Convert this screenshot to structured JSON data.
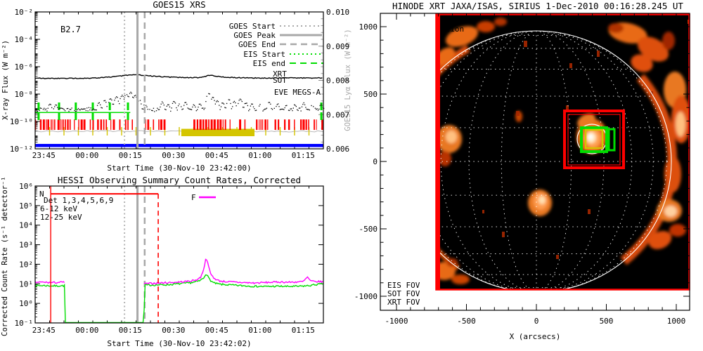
{
  "figure": {
    "background": "#ffffff"
  },
  "colors": {
    "red": "#ff0000",
    "green": "#00dd00",
    "yellow": "#d4c500",
    "blue": "#0000ff",
    "magenta": "#ff00ff",
    "gray": "#a8a8a8",
    "black": "#000000",
    "image_orange": "#e86a14",
    "image_core": "#ffe8c0"
  },
  "panels": {
    "goes": {
      "title": "GOES15 XRS",
      "flare_class": "B2.7",
      "ylabel": "X-ray Flux (W m⁻²)",
      "right_ylabel": "GOES15 Lyα Flux (W m⁻²)",
      "xlabel": "Start Time (30-Nov-10 23:42:00)",
      "legend_lines": [
        {
          "label": "GOES Start",
          "color": "#a8a8a8",
          "dash": "2,4",
          "width": 2
        },
        {
          "label": "GOES Peak",
          "color": "#a8a8a8",
          "dash": "",
          "width": 3
        },
        {
          "label": "GOES End",
          "color": "#a8a8a8",
          "dash": "9,6",
          "width": 2.5
        },
        {
          "label": "EIS Start",
          "color": "#00dd00",
          "dash": "2,4",
          "width": 2
        },
        {
          "label": "EIS end",
          "color": "#00dd00",
          "dash": "9,6",
          "width": 2
        }
      ],
      "legend_texts": [
        {
          "label": "XRT",
          "color": "#ff0000"
        },
        {
          "label": "SOT",
          "color": "#d4c500"
        },
        {
          "label": "EVE MEGS-A",
          "color": "#0000ff"
        }
      ]
    },
    "hessi": {
      "title": "HESSI Observing Summary Count Rates, Corrected",
      "ylabel": "Corrected Count Rate (s⁻¹ detector⁻¹)",
      "xlabel": "Start Time (30-Nov-10 23:42:02)",
      "detectors_label": "Det 1,3,4,5,6,9",
      "series_labels": [
        {
          "label": "6-12 keV",
          "color": "#ff00ff"
        },
        {
          "label": "12-25 keV",
          "color": "#00dd00"
        }
      ],
      "flag_night": "N",
      "flag_flare": "F"
    },
    "xrt": {
      "title": "HINODE XRT JAXA/ISAS, SIRIUS  1-Dec-2010 00:16:28.245 UT",
      "xlabel": "X (arcsecs)",
      "corner_text": "ation",
      "fov_legend": [
        {
          "label": "EIS FOV",
          "color": "#00dd00"
        },
        {
          "label": "SOT FOV",
          "color": "#d4c500"
        },
        {
          "label": "XRT FOV",
          "color": "#ff0000"
        }
      ]
    }
  },
  "chart_data": [
    {
      "type": "line",
      "title": "GOES15 XRS",
      "flare_class": "B2.7",
      "x_unit": "minutes since 30-Nov-10 23:42:00",
      "xlim": [
        0,
        100
      ],
      "x_ticks": [
        "23:45",
        "00:00",
        "00:15",
        "00:30",
        "00:45",
        "01:00",
        "01:15"
      ],
      "x_tick_minutes": [
        3,
        18,
        33,
        48,
        63,
        78,
        93
      ],
      "ylabel": "X-ray Flux (W m⁻²)",
      "ylog_lim": [
        -12,
        -2
      ],
      "y_tick_labels": [
        "10⁻²",
        "10⁻⁴",
        "10⁻⁶",
        "10⁻⁸",
        "10⁻¹⁰",
        "10⁻¹²"
      ],
      "y_tick_exponents": [
        -2,
        -4,
        -6,
        -8,
        -10,
        -12
      ],
      "right_axis": {
        "label": "GOES15 Lyα Flux (W m⁻²)",
        "ticks": [
          "0.010",
          "0.009",
          "0.008",
          "0.007",
          "0.006"
        ],
        "range": [
          0.006,
          0.01
        ]
      },
      "events": {
        "goes_start": "00:13",
        "goes_peak": "00:17",
        "goes_end": "00:20",
        "minutes": [
          31,
          35.5,
          38
        ]
      },
      "series": [
        {
          "name": "GOES 1.0-8.0 A",
          "style": "solid",
          "color": "#000000",
          "points": [
            [
              0,
              1.45e-07
            ],
            [
              5,
              1.4e-07
            ],
            [
              10,
              1.42e-07
            ],
            [
              14,
              1.4e-07
            ],
            [
              18,
              1.45e-07
            ],
            [
              22,
              1.55e-07
            ],
            [
              25,
              1.7e-07
            ],
            [
              28,
              1.95e-07
            ],
            [
              31,
              2.25e-07
            ],
            [
              33,
              2.55e-07
            ],
            [
              34.5,
              2.65e-07
            ],
            [
              36,
              2.5e-07
            ],
            [
              38,
              2.3e-07
            ],
            [
              41,
              2.05e-07
            ],
            [
              44,
              1.85e-07
            ],
            [
              47,
              1.72e-07
            ],
            [
              50,
              1.65e-07
            ],
            [
              53,
              1.6e-07
            ],
            [
              56,
              1.58e-07
            ],
            [
              58.5,
              1.75e-07
            ],
            [
              60,
              2.3e-07
            ],
            [
              61,
              2.35e-07
            ],
            [
              62.5,
              2.05e-07
            ],
            [
              64,
              1.85e-07
            ],
            [
              66,
              1.7e-07
            ],
            [
              69,
              1.6e-07
            ],
            [
              72,
              1.55e-07
            ],
            [
              76,
              1.5e-07
            ],
            [
              80,
              1.48e-07
            ],
            [
              84,
              1.5e-07
            ],
            [
              88,
              1.52e-07
            ],
            [
              92,
              1.48e-07
            ],
            [
              96,
              1.5e-07
            ],
            [
              100,
              1.52e-07
            ]
          ]
        },
        {
          "name": "GOES 0.5-4.0 A",
          "style": "dots",
          "color": "#000000",
          "baseline": 8e-10,
          "spikes": [
            [
              5,
              2.2e-09
            ],
            [
              7,
              1.8e-09
            ],
            [
              22,
              2.5e-09
            ],
            [
              24,
              3.5e-09
            ],
            [
              26,
              5e-09
            ],
            [
              28,
              7e-09
            ],
            [
              30,
              9e-09
            ],
            [
              31.5,
              1.1e-08
            ],
            [
              33,
              1.35e-08
            ],
            [
              34.5,
              9e-09
            ],
            [
              36,
              4e-09
            ],
            [
              38,
              2e-09
            ],
            [
              44,
              2.8e-09
            ],
            [
              46,
              2e-09
            ],
            [
              48,
              3.2e-09
            ],
            [
              50,
              2e-09
            ],
            [
              52,
              2.6e-09
            ],
            [
              55,
              1.8e-09
            ],
            [
              57,
              2.2e-09
            ],
            [
              60,
              1.3e-08
            ],
            [
              61.5,
              6e-09
            ],
            [
              63,
              3.5e-09
            ],
            [
              65,
              2.5e-09
            ],
            [
              67,
              4.5e-09
            ],
            [
              69,
              3e-09
            ],
            [
              71,
              5e-09
            ],
            [
              73,
              2.5e-09
            ],
            [
              75,
              2e-09
            ],
            [
              78,
              1.8e-09
            ],
            [
              81,
              2.8e-09
            ],
            [
              84,
              2e-09
            ],
            [
              87,
              1.6e-09
            ],
            [
              90,
              1.8e-09
            ],
            [
              93,
              2.4e-09
            ],
            [
              96,
              1.6e-09
            ],
            [
              99,
              1.8e-09
            ]
          ]
        }
      ],
      "bands": {
        "eis": {
          "line_flux": 4.5e-10,
          "line_t": [
            0,
            33
          ],
          "tick_times": [
            1.2,
            8.3,
            14.1,
            20,
            25.9,
            32.2,
            99.3
          ]
        },
        "xrt": {
          "flux_range": [
            2.4e-11,
            1.4e-10
          ],
          "segments": [
            [
              0,
              45.6
            ],
            [
              54.9,
              100
            ]
          ]
        },
        "sot": {
          "level_flux": 1.9e-11,
          "tick_every_min": 5,
          "bar_t": [
            50.7,
            76.1
          ],
          "bar_flux_range": [
            8.3e-12,
            2.7e-11
          ]
        },
        "eve": {
          "flux": 1.8e-12,
          "t": [
            0,
            100
          ]
        }
      }
    },
    {
      "type": "line",
      "title": "HESSI Observing Summary Count Rates, Corrected",
      "x_unit": "minutes since 30-Nov-10 23:42:02",
      "xlim": [
        0,
        100
      ],
      "x_ticks": [
        "23:45",
        "00:00",
        "00:15",
        "00:30",
        "00:45",
        "01:00",
        "01:15"
      ],
      "x_tick_minutes": [
        3,
        18,
        33,
        48,
        63,
        78,
        93
      ],
      "ylabel": "Corrected Count Rate (s⁻¹ detector⁻¹)",
      "ylog_lim": [
        -1,
        6
      ],
      "y_tick_labels": [
        "10⁶",
        "10⁵",
        "10⁴",
        "10³",
        "10²",
        "10¹",
        "10⁰",
        "10⁻¹"
      ],
      "y_tick_exponents": [
        6,
        5,
        4,
        3,
        2,
        1,
        0,
        -1
      ],
      "detectors": "Det 1,3,4,5,6,9",
      "data_gap_minutes": [
        10.4,
        37.8
      ],
      "events": {
        "goes_start_min": 31,
        "goes_peak_min": 35.5,
        "goes_end_min": 38
      },
      "flags": {
        "night": {
          "label": "N",
          "t": [
            5.4,
            42.7
          ],
          "rate": 400000,
          "vline_solid_t": 5.4,
          "vline_dashed_t": 42.7
        },
        "flare": {
          "label": "F",
          "t": [
            56.8,
            62.7
          ],
          "rate": 270000
        }
      },
      "series": [
        {
          "name": "6-12 keV",
          "color": "#ff00ff",
          "points": [
            [
              0,
              12
            ],
            [
              3,
              12
            ],
            [
              6,
              11.5
            ],
            [
              9,
              12
            ],
            [
              10.3,
              12
            ],
            [
              37.8,
              10
            ],
            [
              40,
              10.5
            ],
            [
              43,
              11
            ],
            [
              46,
              11.5
            ],
            [
              49,
              12
            ],
            [
              52,
              13
            ],
            [
              54,
              14
            ],
            [
              56,
              16
            ],
            [
              57.5,
              22
            ],
            [
              58.5,
              60
            ],
            [
              59.3,
              210
            ],
            [
              59.8,
              150
            ],
            [
              60.3,
              60
            ],
            [
              61,
              30
            ],
            [
              62,
              20
            ],
            [
              63,
              16
            ],
            [
              64,
              14
            ],
            [
              66,
              13
            ],
            [
              68,
              12.5
            ],
            [
              70,
              12
            ],
            [
              73,
              11.5
            ],
            [
              76,
              11
            ],
            [
              79,
              11.5
            ],
            [
              82,
              12
            ],
            [
              85,
              12.5
            ],
            [
              88,
              12
            ],
            [
              91,
              12.5
            ],
            [
              93,
              13
            ],
            [
              94.5,
              22
            ],
            [
              95.5,
              14
            ],
            [
              97,
              13
            ],
            [
              100,
              13
            ]
          ],
          "gap": [
            10.3,
            37.8
          ]
        },
        {
          "name": "12-25 keV",
          "color": "#00dd00",
          "points": [
            [
              0,
              8
            ],
            [
              3,
              8.2
            ],
            [
              6,
              7.8
            ],
            [
              9,
              8
            ],
            [
              10.3,
              8
            ],
            [
              10.5,
              0.095
            ],
            [
              37.7,
              0.095
            ],
            [
              38,
              8.5
            ],
            [
              42,
              8.8
            ],
            [
              46,
              9
            ],
            [
              50,
              10
            ],
            [
              53,
              11
            ],
            [
              55,
              12
            ],
            [
              57,
              14
            ],
            [
              58.5,
              20
            ],
            [
              59.3,
              35
            ],
            [
              60,
              22
            ],
            [
              61,
              14
            ],
            [
              62,
              11
            ],
            [
              64,
              9.5
            ],
            [
              66,
              9
            ],
            [
              69,
              8.5
            ],
            [
              72,
              8
            ],
            [
              76,
              7.5
            ],
            [
              80,
              7.3
            ],
            [
              84,
              7.5
            ],
            [
              88,
              7.3
            ],
            [
              92,
              7.5
            ],
            [
              95,
              8
            ],
            [
              97,
              9
            ],
            [
              100,
              10
            ]
          ],
          "floor": [
            10.5,
            37.7
          ]
        }
      ]
    },
    {
      "type": "image",
      "title": "HINODE XRT JAXA/ISAS, SIRIUS  1-Dec-2010 00:16:28.245 UT",
      "xlabel": "X (arcsecs)",
      "x_ticks": [
        -1000,
        -500,
        0,
        500,
        1000
      ],
      "y_ticks": [
        1000,
        500,
        0,
        -500,
        -1000
      ],
      "axis_range_arcsec": [
        -1100,
        1100
      ],
      "solar_radius_arcsec": 970,
      "grid_spacing_deg": 15,
      "image_extent_arcsec": {
        "x": [
          -719,
          1096
        ],
        "y": [
          -948,
          1094
        ]
      },
      "fov_arcsec": {
        "xrt": {
          "x": [
            201,
            623
          ],
          "y": [
            -47,
            375
          ]
        },
        "eis": {
          "x": [
            322,
            503
          ],
          "y": [
            73,
            250
          ]
        },
        "sot": {
          "x": [
            352,
            472
          ],
          "y": [
            99,
            234
          ]
        }
      },
      "active_region_arcsec": {
        "x": 400,
        "y": 165
      }
    }
  ]
}
